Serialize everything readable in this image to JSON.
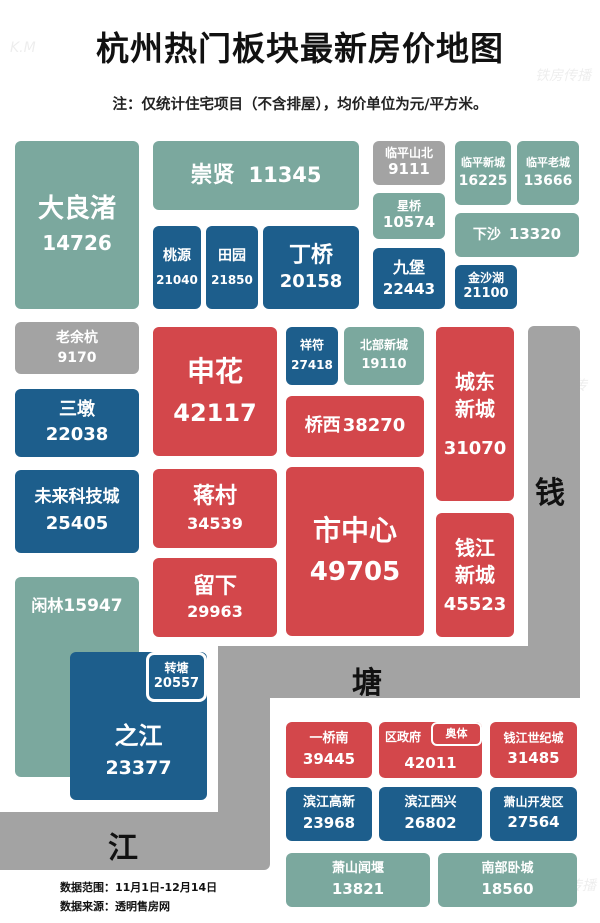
{
  "title": "杭州热门板块最新房价地图",
  "note": "注：仅统计住宅项目（不含排屋），均价单位为元/平方米。",
  "river": [
    "钱",
    "塘",
    "江"
  ],
  "watermarks": [
    "铁房传播",
    "K.M"
  ],
  "footer": {
    "range": "数据范围：11月1日-12月14日",
    "source": "数据来源：透明售房网"
  },
  "blocks": {
    "daliangzhu": {
      "name": "大良渚",
      "price": "14726"
    },
    "chongxian": {
      "name": "崇贤",
      "price": "11345"
    },
    "linpingshanbei": {
      "name": "临平山北",
      "price": "9111"
    },
    "linpingxincheng": {
      "name": "临平新城",
      "price": "16225"
    },
    "linpinglaocheng": {
      "name": "临平老城",
      "price": "13666"
    },
    "xingqiao": {
      "name": "星桥",
      "price": "10574"
    },
    "xiasha": {
      "name": "下沙",
      "price": "13320"
    },
    "taoyuan": {
      "name": "桃源",
      "price": "21040"
    },
    "tianyuan": {
      "name": "田园",
      "price": "21850"
    },
    "dingqiao": {
      "name": "丁桥",
      "price": "20158"
    },
    "jiubao": {
      "name": "九堡",
      "price": "22443"
    },
    "jinshahu": {
      "name": "金沙湖",
      "price": "21100"
    },
    "laoyuhang": {
      "name": "老余杭",
      "price": "9170"
    },
    "xiangfu": {
      "name": "祥符",
      "price": "27418"
    },
    "beibuxincheng": {
      "name": "北部新城",
      "price": "19110"
    },
    "shenhua": {
      "name": "申花",
      "price": "42117"
    },
    "chengdongxincheng": {
      "name": "城东新城",
      "price": "31070"
    },
    "sandun": {
      "name": "三墩",
      "price": "22038"
    },
    "qiaoxi": {
      "name": "桥西",
      "price": "38270"
    },
    "weilaikejicheng": {
      "name": "未来科技城",
      "price": "25405"
    },
    "jiangcun": {
      "name": "蒋村",
      "price": "34539"
    },
    "shizhongxin": {
      "name": "市中心",
      "price": "49705"
    },
    "qianjiangxincheng": {
      "name": "钱江新城",
      "price": "45523"
    },
    "liuxia": {
      "name": "留下",
      "price": "29963"
    },
    "xianlin": {
      "name": "闲林",
      "price": "15947"
    },
    "zhuantang": {
      "name": "转塘",
      "price": "20557"
    },
    "zhijiang": {
      "name": "之江",
      "price": "23377"
    },
    "yiqiaonan": {
      "name": "一桥南",
      "price": "39445"
    },
    "quzhengfu": {
      "name": "区政府",
      "price": "42011"
    },
    "aoti": {
      "name": "奥体"
    },
    "qianjiangshijicheng": {
      "name": "钱江世纪城",
      "price": "31485"
    },
    "binjianggaoxin": {
      "name": "滨江高新",
      "price": "23968"
    },
    "binjiangxixing": {
      "name": "滨江西兴",
      "price": "26802"
    },
    "xiaoshankaifaqu": {
      "name": "萧山开发区",
      "price": "27564"
    },
    "xiaoshanwenyan": {
      "name": "萧山闻堰",
      "price": "13821"
    },
    "nanbuwocheng": {
      "name": "南部卧城",
      "price": "18560"
    }
  }
}
